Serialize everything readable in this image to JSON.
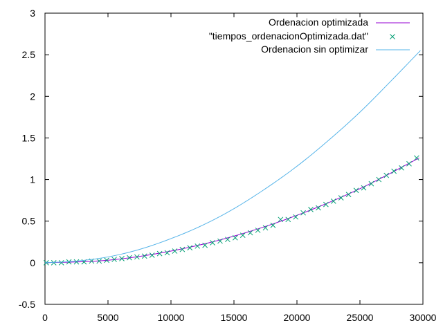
{
  "chart_data": {
    "type": "line",
    "xlim": [
      0,
      30000
    ],
    "ylim": [
      -0.5,
      3
    ],
    "x_ticks": [
      0,
      5000,
      10000,
      15000,
      20000,
      25000,
      30000
    ],
    "x_tick_labels": [
      "0",
      "5000",
      "10000",
      "15000",
      "20000",
      "25000",
      "30000"
    ],
    "y_ticks": [
      -0.5,
      0,
      0.5,
      1,
      1.5,
      2,
      2.5,
      3
    ],
    "y_tick_labels": [
      "-0.5",
      "0",
      "0.5",
      "1",
      "1.5",
      "2",
      "2.5",
      "3"
    ],
    "grid": false,
    "legend_position": "top-right",
    "series": [
      {
        "name": "Ordenacion optimizada",
        "style": "line",
        "color": "#9400d3",
        "x": [
          0,
          5000,
          10000,
          15000,
          20000,
          25000,
          29700
        ],
        "y": [
          0,
          0.03,
          0.14,
          0.32,
          0.57,
          0.89,
          1.26
        ]
      },
      {
        "name": "\"tiempos_ordenacionOptimizada.dat\"",
        "style": "points",
        "marker": "x",
        "color": "#009e73",
        "x": [
          100,
          700,
          1300,
          1900,
          2500,
          3100,
          3700,
          4300,
          4900,
          5500,
          6100,
          6700,
          7300,
          7900,
          8500,
          9100,
          9700,
          10300,
          10900,
          11500,
          12100,
          12700,
          13300,
          13900,
          14500,
          15100,
          15700,
          16300,
          16900,
          17500,
          18100,
          18700,
          19300,
          19900,
          20500,
          21100,
          21700,
          22300,
          22900,
          23500,
          24100,
          24700,
          25300,
          25900,
          26500,
          27100,
          27700,
          28300,
          28900,
          29500
        ],
        "y": [
          0,
          0,
          0,
          0.01,
          0.01,
          0.01,
          0.02,
          0.02,
          0.03,
          0.04,
          0.05,
          0.06,
          0.07,
          0.08,
          0.09,
          0.11,
          0.12,
          0.14,
          0.16,
          0.18,
          0.2,
          0.21,
          0.24,
          0.26,
          0.28,
          0.3,
          0.33,
          0.36,
          0.39,
          0.42,
          0.45,
          0.52,
          0.52,
          0.55,
          0.6,
          0.64,
          0.66,
          0.7,
          0.74,
          0.78,
          0.82,
          0.87,
          0.9,
          0.95,
          1.0,
          1.05,
          1.1,
          1.14,
          1.19,
          1.26
        ]
      },
      {
        "name": "Ordenacion sin optimizar",
        "style": "line",
        "color": "#56b4e9",
        "x": [
          0,
          2500,
          5000,
          7500,
          10000,
          12500,
          15000,
          17500,
          20000,
          22500,
          25000,
          27500,
          29800
        ],
        "y": [
          0,
          0.02,
          0.07,
          0.16,
          0.29,
          0.45,
          0.65,
          0.89,
          1.16,
          1.47,
          1.81,
          2.19,
          2.55
        ]
      }
    ]
  }
}
